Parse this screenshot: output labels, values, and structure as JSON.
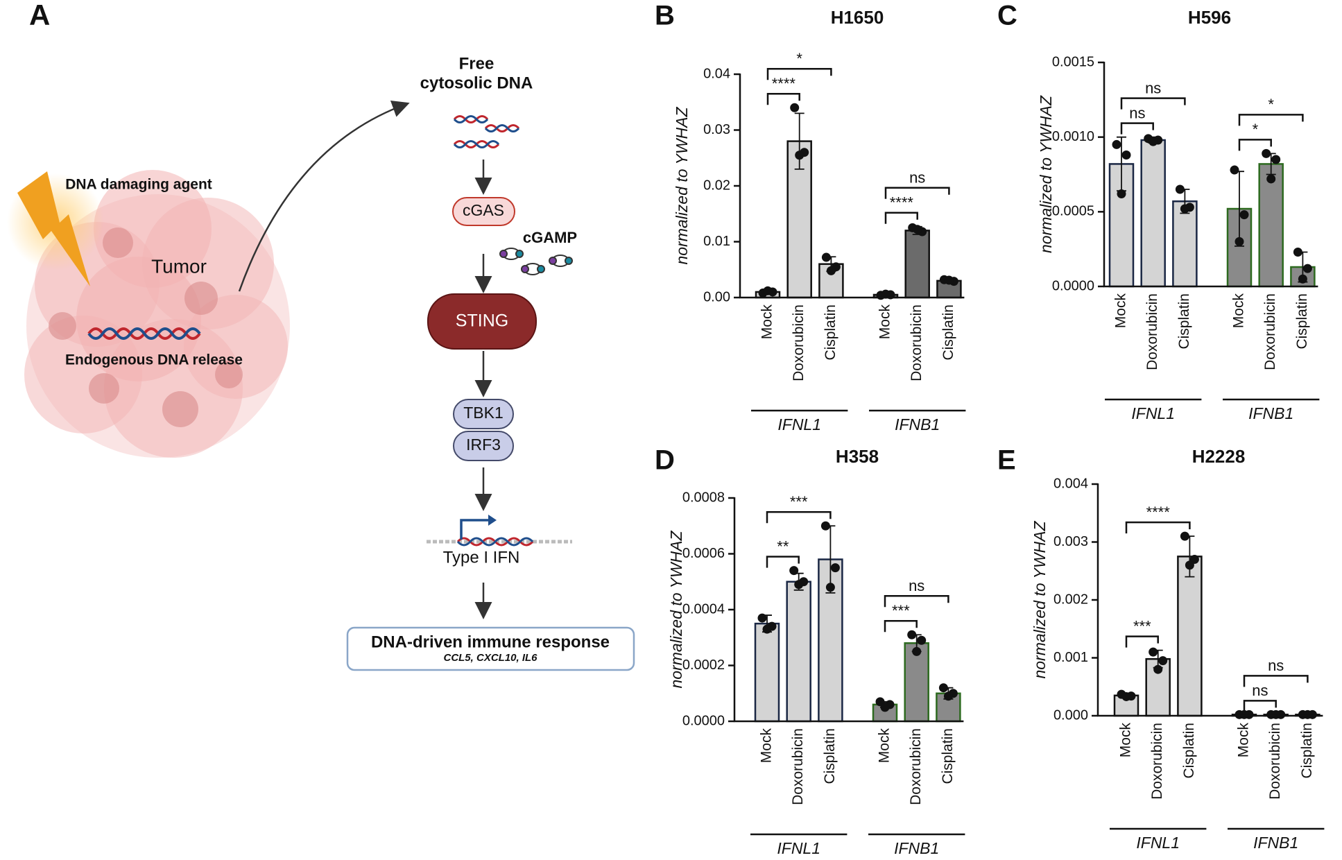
{
  "diagram": {
    "panel": "A",
    "agent": "DNA damaging agent",
    "tumor": "Tumor",
    "release": "Endogenous DNA release",
    "cytosolic_dna": [
      "Free",
      "cytosolic DNA"
    ],
    "cgas": "cGAS",
    "cgamp": "cGAMP",
    "sting": "STING",
    "tbk1": "TBK1",
    "irf3": "IRF3",
    "ifn": "Type I IFN",
    "response": "DNA-driven immune response",
    "genes": "CCL5, CXCL10, IL6"
  },
  "chart_data": [
    {
      "type": "bar",
      "panel": "B",
      "title": "H1650",
      "ylabel": "normalized to YWHAZ",
      "ylim": [
        0,
        0.04
      ],
      "yticks": [
        {
          "value": 0,
          "label": "0.00"
        },
        {
          "value": 0.01,
          "label": "0.01"
        },
        {
          "value": 0.02,
          "label": "0.02"
        },
        {
          "value": 0.03,
          "label": "0.03"
        },
        {
          "value": 0.04,
          "label": "0.04"
        }
      ],
      "groups": [
        {
          "name": "IFNL1",
          "fill": "#d4d4d4",
          "edge": "#111111",
          "categories": [
            "Mock",
            "Doxorubicin",
            "Cisplatin"
          ],
          "values": [
            0.001,
            0.028,
            0.006
          ],
          "errors": [
            0.0003,
            0.005,
            0.0013
          ],
          "points": [
            [
              0.0008,
              0.001,
              0.0012
            ],
            [
              0.034,
              0.026,
              0.0255
            ],
            [
              0.0072,
              0.0055,
              0.0048
            ]
          ],
          "brackets": [
            {
              "label": "****",
              "between": [
                "Mock",
                "Doxorubicin"
              ]
            },
            {
              "label": "*",
              "between": [
                "Mock",
                "Cisplatin"
              ]
            }
          ]
        },
        {
          "name": "IFNB1",
          "fill": "#6b6b6b",
          "edge": "#111111",
          "categories": [
            "Mock",
            "Doxorubicin",
            "Cisplatin"
          ],
          "values": [
            0.0005,
            0.012,
            0.003
          ],
          "errors": [
            0.0001,
            0.0007,
            0.0003
          ],
          "points": [
            [
              0.0004,
              0.0005,
              0.0006
            ],
            [
              0.0125,
              0.0118,
              0.0122
            ],
            [
              0.0032,
              0.0029,
              0.0031
            ]
          ],
          "brackets": [
            {
              "label": "****",
              "between": [
                "Mock",
                "Doxorubicin"
              ]
            },
            {
              "label": "ns",
              "between": [
                "Mock",
                "Cisplatin"
              ]
            }
          ]
        }
      ]
    },
    {
      "type": "bar",
      "panel": "C",
      "title": "H596",
      "ylabel": "normalized to YWHAZ",
      "ylim": [
        0,
        0.0015
      ],
      "yticks": [
        {
          "value": 0,
          "label": "0.0000"
        },
        {
          "value": 0.0005,
          "label": "0.0005"
        },
        {
          "value": 0.001,
          "label": "0.0010"
        },
        {
          "value": 0.0015,
          "label": "0.0015"
        }
      ],
      "groups": [
        {
          "name": "IFNL1",
          "fill": "#d4d4d4",
          "edge": "#1a2744",
          "categories": [
            "Mock",
            "Doxorubicin",
            "Cisplatin"
          ],
          "values": [
            0.00082,
            0.00098,
            0.00057
          ],
          "errors": [
            0.00018,
            2e-05,
            8e-05
          ],
          "points": [
            [
              0.00095,
              0.00088,
              0.00062
            ],
            [
              0.00099,
              0.00098,
              0.00097
            ],
            [
              0.00065,
              0.00053,
              0.00052
            ]
          ],
          "brackets": [
            {
              "label": "ns",
              "between": [
                "Mock",
                "Doxorubicin"
              ]
            },
            {
              "label": "ns",
              "between": [
                "Mock",
                "Cisplatin"
              ]
            }
          ]
        },
        {
          "name": "IFNB1",
          "fill": "#8a8a8a",
          "edge": "#2d6a1f",
          "categories": [
            "Mock",
            "Doxorubicin",
            "Cisplatin"
          ],
          "values": [
            0.00052,
            0.00082,
            0.00013
          ],
          "errors": [
            0.00025,
            7e-05,
            0.0001
          ],
          "points": [
            [
              0.00078,
              0.00048,
              0.0003
            ],
            [
              0.00089,
              0.00085,
              0.00072
            ],
            [
              0.00023,
              0.00012,
              5e-05
            ]
          ],
          "brackets": [
            {
              "label": "*",
              "between": [
                "Mock",
                "Doxorubicin"
              ]
            },
            {
              "label": "*",
              "between": [
                "Mock",
                "Cisplatin"
              ]
            }
          ]
        }
      ]
    },
    {
      "type": "bar",
      "panel": "D",
      "title": "H358",
      "ylabel": "normalized to YWHAZ",
      "ylim": [
        0,
        0.0008
      ],
      "yticks": [
        {
          "value": 0,
          "label": "0.0000"
        },
        {
          "value": 0.0002,
          "label": "0.0002"
        },
        {
          "value": 0.0004,
          "label": "0.0004"
        },
        {
          "value": 0.0006,
          "label": "0.0006"
        },
        {
          "value": 0.0008,
          "label": "0.0008"
        }
      ],
      "groups": [
        {
          "name": "IFNL1",
          "fill": "#d4d4d4",
          "edge": "#1a2744",
          "categories": [
            "Mock",
            "Doxorubicin",
            "Cisplatin"
          ],
          "values": [
            0.00035,
            0.0005,
            0.00058
          ],
          "errors": [
            3e-05,
            3e-05,
            0.00012
          ],
          "points": [
            [
              0.00037,
              0.00034,
              0.00033
            ],
            [
              0.00054,
              0.0005,
              0.00049
            ],
            [
              0.0007,
              0.00055,
              0.00048
            ]
          ],
          "brackets": [
            {
              "label": "**",
              "between": [
                "Mock",
                "Doxorubicin"
              ]
            },
            {
              "label": "***",
              "between": [
                "Mock",
                "Cisplatin"
              ]
            }
          ]
        },
        {
          "name": "IFNB1",
          "fill": "#8a8a8a",
          "edge": "#2d6a1f",
          "categories": [
            "Mock",
            "Doxorubicin",
            "Cisplatin"
          ],
          "values": [
            6e-05,
            0.00028,
            0.0001
          ],
          "errors": [
            1e-05,
            3e-05,
            2e-05
          ],
          "points": [
            [
              7e-05,
              6e-05,
              5e-05
            ],
            [
              0.00031,
              0.00029,
              0.00025
            ],
            [
              0.00012,
              0.0001,
              9e-05
            ]
          ],
          "brackets": [
            {
              "label": "***",
              "between": [
                "Mock",
                "Doxorubicin"
              ]
            },
            {
              "label": "ns",
              "between": [
                "Mock",
                "Cisplatin"
              ]
            }
          ]
        }
      ]
    },
    {
      "type": "bar",
      "panel": "E",
      "title": "H2228",
      "ylabel": "normalized to YWHAZ",
      "ylim": [
        0,
        0.004
      ],
      "yticks": [
        {
          "value": 0,
          "label": "0.000"
        },
        {
          "value": 0.001,
          "label": "0.001"
        },
        {
          "value": 0.002,
          "label": "0.002"
        },
        {
          "value": 0.003,
          "label": "0.003"
        },
        {
          "value": 0.004,
          "label": "0.004"
        }
      ],
      "groups": [
        {
          "name": "IFNL1",
          "fill": "#d4d4d4",
          "edge": "#111111",
          "categories": [
            "Mock",
            "Doxorubicin",
            "Cisplatin"
          ],
          "values": [
            0.00035,
            0.00098,
            0.00275
          ],
          "errors": [
            3e-05,
            0.00015,
            0.00035
          ],
          "points": [
            [
              0.00037,
              0.00034,
              0.00033
            ],
            [
              0.0011,
              0.00095,
              0.0008
            ],
            [
              0.0031,
              0.0027,
              0.0026
            ]
          ],
          "brackets": [
            {
              "label": "***",
              "between": [
                "Mock",
                "Doxorubicin"
              ]
            },
            {
              "label": "****",
              "between": [
                "Mock",
                "Cisplatin"
              ]
            }
          ]
        },
        {
          "name": "IFNB1",
          "fill": "#6b6b6b",
          "edge": "#111111",
          "categories": [
            "Mock",
            "Doxorubicin",
            "Cisplatin"
          ],
          "values": [
            2e-05,
            2e-05,
            2e-05
          ],
          "errors": [
            0,
            0,
            0
          ],
          "points": [
            [
              2e-05,
              2e-05,
              2e-05
            ],
            [
              2e-05,
              2e-05,
              2e-05
            ],
            [
              2e-05,
              2e-05,
              2e-05
            ]
          ],
          "brackets": [
            {
              "label": "ns",
              "between": [
                "Mock",
                "Doxorubicin"
              ]
            },
            {
              "label": "ns",
              "between": [
                "Mock",
                "Cisplatin"
              ]
            }
          ]
        }
      ]
    }
  ]
}
